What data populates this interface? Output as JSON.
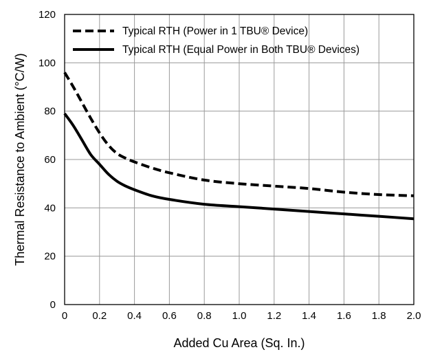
{
  "chart_data": {
    "type": "line",
    "xlabel": "Added Cu Area (Sq. In.)",
    "ylabel": "Thermal Resistance to Ambient (°C/W)",
    "xlim": [
      0,
      2.0
    ],
    "ylim": [
      0,
      120
    ],
    "x_ticks": [
      "0",
      "0.2",
      "0.4",
      "0.6",
      "0.8",
      "1.0",
      "1.2",
      "1.4",
      "1.6",
      "1.8",
      "2.0"
    ],
    "y_ticks": [
      "0",
      "20",
      "40",
      "60",
      "80",
      "100",
      "120"
    ],
    "grid": true,
    "legend_position": "top",
    "series": [
      {
        "name": "Typical RTH (Power in 1 TBU® Device)",
        "line_style": "dashed",
        "color": "#000000",
        "x": [
          0,
          0.05,
          0.1,
          0.15,
          0.2,
          0.25,
          0.3,
          0.35,
          0.4,
          0.5,
          0.6,
          0.8,
          1.0,
          1.2,
          1.4,
          1.6,
          1.8,
          2.0
        ],
        "y": [
          96,
          90,
          83.5,
          77,
          71,
          66,
          62.5,
          60.5,
          59,
          56.5,
          54.5,
          51.5,
          50,
          49,
          48,
          46.5,
          45.5,
          45
        ]
      },
      {
        "name": "Typical RTH (Equal Power in Both TBU® Devices)",
        "line_style": "solid",
        "color": "#000000",
        "x": [
          0,
          0.05,
          0.1,
          0.15,
          0.2,
          0.25,
          0.3,
          0.35,
          0.4,
          0.5,
          0.6,
          0.8,
          1.0,
          1.2,
          1.4,
          1.6,
          1.8,
          2.0
        ],
        "y": [
          79,
          74,
          68,
          62,
          58,
          54,
          51,
          49,
          47.5,
          45,
          43.5,
          41.5,
          40.5,
          39.5,
          38.5,
          37.5,
          36.5,
          35.5
        ]
      }
    ]
  }
}
